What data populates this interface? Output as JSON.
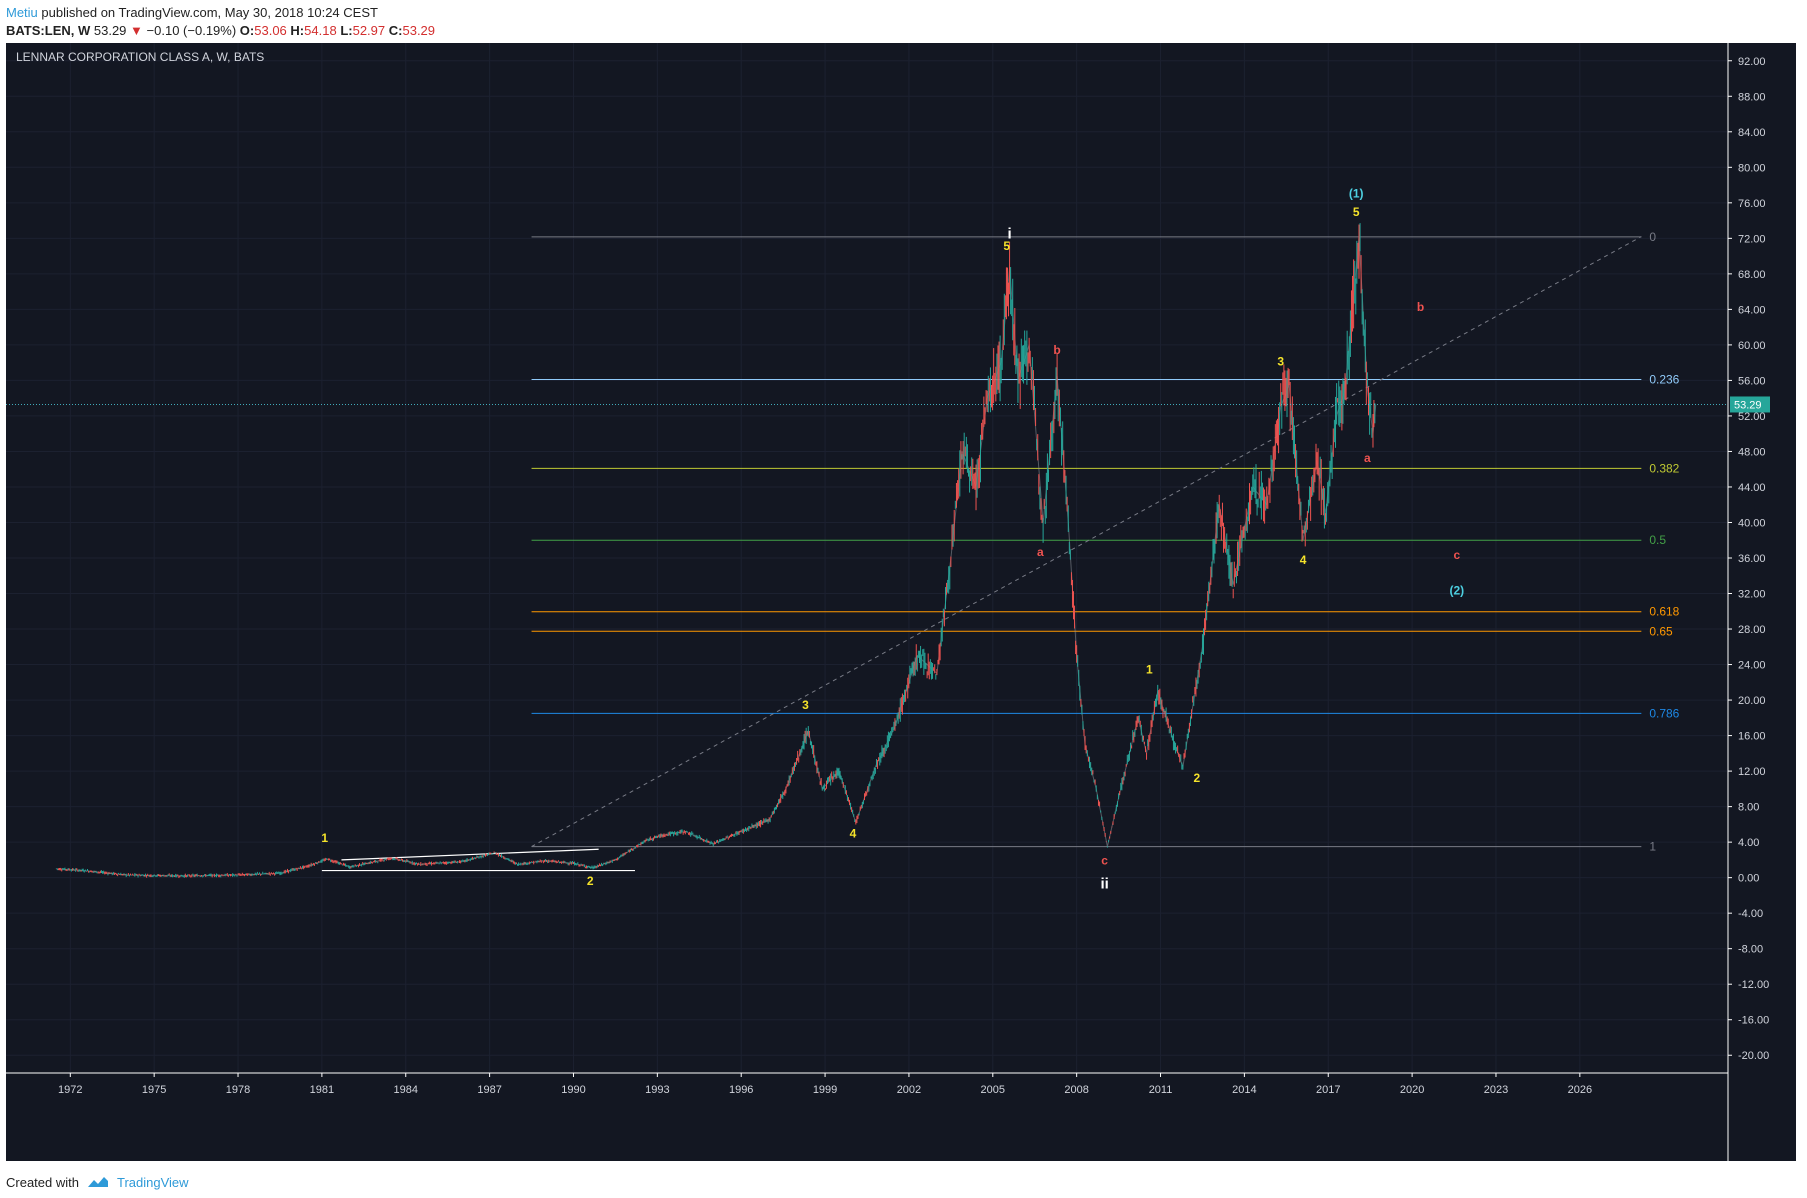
{
  "header": {
    "author": "Metiu",
    "published_text": "published on TradingView.com, May 30, 2018 10:24 CEST",
    "symbol": "BATS:LEN, W",
    "last": "53.29",
    "change": "−0.10 (−0.19%)",
    "o_label": "O:",
    "o_value": "53.06",
    "h_label": "H:",
    "h_value": "54.18",
    "l_label": "L:",
    "l_value": "52.97",
    "c_label": "C:",
    "c_value": "53.29"
  },
  "footer": {
    "created_with": "Created with",
    "brand": "TradingView"
  },
  "colors": {
    "background": "#131722",
    "up": "#26a69a",
    "down": "#ef5350",
    "wave_yellow": "#f5e32a",
    "wave_red": "#ef5350",
    "wave_cyan": "#4dd0e1",
    "wave_white": "#ffffff"
  },
  "chart_data": {
    "type": "line",
    "title": "LENNAR CORPORATION CLASS A, W, BATS",
    "x_ticks": [
      "1972",
      "1975",
      "1978",
      "1981",
      "1984",
      "1987",
      "1990",
      "1993",
      "1996",
      "1999",
      "2002",
      "2005",
      "2008",
      "2011",
      "2014",
      "2017",
      "2020",
      "2023",
      "2026"
    ],
    "y_ticks": [
      "92.00",
      "88.00",
      "84.00",
      "80.00",
      "76.00",
      "72.00",
      "68.00",
      "64.00",
      "60.00",
      "56.00",
      "52.00",
      "48.00",
      "44.00",
      "40.00",
      "36.00",
      "32.00",
      "28.00",
      "24.00",
      "20.00",
      "16.00",
      "12.00",
      "8.00",
      "4.00",
      "0.00",
      "-4.00",
      "-8.00",
      "-12.00",
      "-16.00",
      "-20.00"
    ],
    "ylim": [
      -22,
      94
    ],
    "xlim": [
      1969.7,
      2031.3
    ],
    "last_price": 53.29,
    "last_price_label": "53.29",
    "price_series": [
      {
        "x": 1971.5,
        "y": 1.0
      },
      {
        "x": 1972.5,
        "y": 0.8
      },
      {
        "x": 1974,
        "y": 0.3
      },
      {
        "x": 1976,
        "y": 0.2
      },
      {
        "x": 1978,
        "y": 0.3
      },
      {
        "x": 1979.5,
        "y": 0.5
      },
      {
        "x": 1980.5,
        "y": 1.3
      },
      {
        "x": 1981.2,
        "y": 2.1
      },
      {
        "x": 1982,
        "y": 1.2
      },
      {
        "x": 1983.5,
        "y": 2.2
      },
      {
        "x": 1984.5,
        "y": 1.5
      },
      {
        "x": 1986,
        "y": 1.8
      },
      {
        "x": 1987.2,
        "y": 2.8
      },
      {
        "x": 1988,
        "y": 1.5
      },
      {
        "x": 1989,
        "y": 1.9
      },
      {
        "x": 1990,
        "y": 1.6
      },
      {
        "x": 1990.7,
        "y": 1.1
      },
      {
        "x": 1991.5,
        "y": 2.0
      },
      {
        "x": 1992,
        "y": 3.0
      },
      {
        "x": 1992.6,
        "y": 4.2
      },
      {
        "x": 1993.2,
        "y": 4.8
      },
      {
        "x": 1994,
        "y": 5.2
      },
      {
        "x": 1995,
        "y": 3.8
      },
      {
        "x": 1996,
        "y": 5.2
      },
      {
        "x": 1997,
        "y": 6.5
      },
      {
        "x": 1997.6,
        "y": 10.0
      },
      {
        "x": 1998.4,
        "y": 16.5
      },
      {
        "x": 1998.9,
        "y": 10.0
      },
      {
        "x": 1999.5,
        "y": 12.0
      },
      {
        "x": 2000.1,
        "y": 6.2
      },
      {
        "x": 2000.8,
        "y": 12.5
      },
      {
        "x": 2001.5,
        "y": 17.0
      },
      {
        "x": 2002.3,
        "y": 25.0
      },
      {
        "x": 2003.0,
        "y": 23.0
      },
      {
        "x": 2003.5,
        "y": 36.0
      },
      {
        "x": 2003.9,
        "y": 48.0
      },
      {
        "x": 2004.4,
        "y": 44.0
      },
      {
        "x": 2004.8,
        "y": 54.0
      },
      {
        "x": 2005.3,
        "y": 58.0
      },
      {
        "x": 2005.6,
        "y": 68.7
      },
      {
        "x": 2005.9,
        "y": 56.0
      },
      {
        "x": 2006.3,
        "y": 60.0
      },
      {
        "x": 2006.8,
        "y": 40.0
      },
      {
        "x": 2007.3,
        "y": 56.5
      },
      {
        "x": 2007.7,
        "y": 40.0
      },
      {
        "x": 2008.0,
        "y": 25.0
      },
      {
        "x": 2008.3,
        "y": 15.0
      },
      {
        "x": 2008.7,
        "y": 10.0
      },
      {
        "x": 2009.1,
        "y": 3.5
      },
      {
        "x": 2009.5,
        "y": 9.0
      },
      {
        "x": 2010.2,
        "y": 18.0
      },
      {
        "x": 2010.5,
        "y": 14.0
      },
      {
        "x": 2010.9,
        "y": 21.0
      },
      {
        "x": 2011.5,
        "y": 15.0
      },
      {
        "x": 2011.8,
        "y": 12.5
      },
      {
        "x": 2012.5,
        "y": 26.0
      },
      {
        "x": 2013.1,
        "y": 42.0
      },
      {
        "x": 2013.6,
        "y": 33.0
      },
      {
        "x": 2014.3,
        "y": 44.0
      },
      {
        "x": 2014.8,
        "y": 42.0
      },
      {
        "x": 2015.3,
        "y": 53.0
      },
      {
        "x": 2015.6,
        "y": 55.5
      },
      {
        "x": 2016.1,
        "y": 38.0
      },
      {
        "x": 2016.6,
        "y": 47.0
      },
      {
        "x": 2016.9,
        "y": 41.0
      },
      {
        "x": 2017.3,
        "y": 52.0
      },
      {
        "x": 2017.6,
        "y": 55.0
      },
      {
        "x": 2018.1,
        "y": 72.2
      },
      {
        "x": 2018.4,
        "y": 55.0
      },
      {
        "x": 2018.6,
        "y": 50.0
      },
      {
        "x": 2018.7,
        "y": 53.29
      }
    ],
    "fib_levels": [
      {
        "label": "0",
        "price": 72.17,
        "color": "#787b86"
      },
      {
        "label": "0.236",
        "price": 56.1,
        "color": "#90caf9"
      },
      {
        "label": "0.382",
        "price": 46.1,
        "color": "#c0ca33"
      },
      {
        "label": "0.5",
        "price": 38.0,
        "color": "#43a047"
      },
      {
        "label": "0.618",
        "price": 29.95,
        "color": "#ff9800"
      },
      {
        "label": "0.65",
        "price": 27.75,
        "color": "#ff9800"
      },
      {
        "label": "0.786",
        "price": 18.5,
        "color": "#1e88e5"
      },
      {
        "label": "1",
        "price": 3.5,
        "color": "#787b86"
      }
    ],
    "fib_x_start": 1988.5,
    "fib_x_end": 2028.2,
    "trend_line": {
      "x1": 1988.5,
      "y1": 3.5,
      "x2": 2028.2,
      "y2": 72.2
    },
    "channel_lines": [
      {
        "x1": 1981.7,
        "y1": 2.0,
        "x2": 1990.9,
        "y2": 3.2
      },
      {
        "x1": 1981.0,
        "y1": 0.8,
        "x2": 1992.2,
        "y2": 0.8
      }
    ],
    "wave_labels": [
      {
        "text": "1",
        "x": 1981.1,
        "y": 4.0,
        "color": "#f5e32a"
      },
      {
        "text": "2",
        "x": 1990.6,
        "y": -0.8,
        "color": "#f5e32a"
      },
      {
        "text": "3",
        "x": 1998.3,
        "y": 19.0,
        "color": "#f5e32a"
      },
      {
        "text": "4",
        "x": 2000.0,
        "y": 4.5,
        "color": "#f5e32a"
      },
      {
        "text": "5",
        "x": 2005.5,
        "y": 70.7,
        "color": "#f5e32a"
      },
      {
        "text": "i",
        "x": 2005.6,
        "y": 72.0,
        "color": "#ffffff"
      },
      {
        "text": "b",
        "x": 2007.3,
        "y": 59.0,
        "color": "#ef5350"
      },
      {
        "text": "a",
        "x": 2006.7,
        "y": 36.2,
        "color": "#ef5350"
      },
      {
        "text": "c",
        "x": 2009.0,
        "y": 1.5,
        "color": "#ef5350"
      },
      {
        "text": "ii",
        "x": 2009.0,
        "y": -1.2,
        "color": "#ffffff"
      },
      {
        "text": "1",
        "x": 2010.6,
        "y": 23.0,
        "color": "#f5e32a"
      },
      {
        "text": "2",
        "x": 2012.3,
        "y": 10.8,
        "color": "#f5e32a"
      },
      {
        "text": "3",
        "x": 2015.3,
        "y": 57.7,
        "color": "#f5e32a"
      },
      {
        "text": "4",
        "x": 2016.1,
        "y": 35.3,
        "color": "#f5e32a"
      },
      {
        "text": "5",
        "x": 2018.0,
        "y": 74.5,
        "color": "#f5e32a"
      },
      {
        "text": "(1)",
        "x": 2018.0,
        "y": 76.6,
        "color": "#4dd0e1"
      },
      {
        "text": "b",
        "x": 2020.3,
        "y": 63.8,
        "color": "#ef5350"
      },
      {
        "text": "a",
        "x": 2018.4,
        "y": 46.8,
        "color": "#ef5350"
      },
      {
        "text": "c",
        "x": 2021.6,
        "y": 35.9,
        "color": "#ef5350"
      },
      {
        "text": "(2)",
        "x": 2021.6,
        "y": 31.9,
        "color": "#4dd0e1"
      }
    ]
  }
}
